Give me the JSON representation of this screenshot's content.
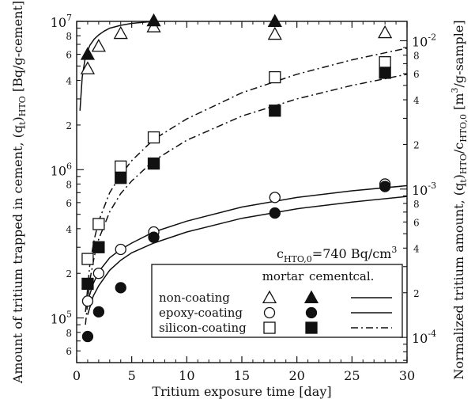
{
  "chart_data": {
    "type": "scatter",
    "xlabel": "Tritium exposure time [day]",
    "ylabel_left": "Amount of tritium trapped in cement, (q",
    "ylabel_left_sub": "t",
    "ylabel_left_mid": ")",
    "ylabel_left_sub2": "HTO",
    "ylabel_left_unit": " [Bq/g-cement]",
    "ylabel_right": "Normalized tritium amount, (q",
    "ylabel_right_sub": "t",
    "ylabel_right_mid": ")",
    "ylabel_right_sub2": "HTO",
    "ylabel_right_slash": "/c",
    "ylabel_right_sub3": "HTO,0",
    "ylabel_right_unit_pre": " [m",
    "ylabel_right_unit_sup": "3",
    "ylabel_right_unit_post": "/g-sample]",
    "x_scale": "linear",
    "y_scale": "log",
    "xlim": [
      0,
      30
    ],
    "ylim": [
      50000,
      10000000
    ],
    "y2lim": [
      6.76e-05,
      0.01351
    ],
    "x_ticks": [
      0,
      5,
      10,
      15,
      20,
      25,
      30
    ],
    "y_left_ticks": [
      {
        "value": 100000,
        "base": "10",
        "exp": "5"
      },
      {
        "value": 1000000,
        "base": "10",
        "exp": "6"
      },
      {
        "value": 10000000,
        "base": "10",
        "exp": "7"
      }
    ],
    "y_left_minor_labels": [
      {
        "value": 60000,
        "label": "6"
      },
      {
        "value": 80000,
        "label": "8"
      },
      {
        "value": 200000,
        "label": "2"
      },
      {
        "value": 400000,
        "label": "4"
      },
      {
        "value": 600000,
        "label": "6"
      },
      {
        "value": 800000,
        "label": "8"
      },
      {
        "value": 2000000,
        "label": "2"
      },
      {
        "value": 4000000,
        "label": "4"
      },
      {
        "value": 6000000,
        "label": "6"
      },
      {
        "value": 8000000,
        "label": "8"
      }
    ],
    "y_right_ticks": [
      {
        "value": 0.0001,
        "base": "10",
        "exp": "-4"
      },
      {
        "value": 0.001,
        "base": "10",
        "exp": "-3"
      },
      {
        "value": 0.01,
        "base": "10",
        "exp": "-2"
      }
    ],
    "y_right_minor_labels": [
      {
        "value": 0.0002,
        "label": "2"
      },
      {
        "value": 0.0004,
        "label": "4"
      },
      {
        "value": 0.0006,
        "label": "6"
      },
      {
        "value": 0.0008,
        "label": "8"
      },
      {
        "value": 0.002,
        "label": "2"
      },
      {
        "value": 0.004,
        "label": "4"
      },
      {
        "value": 0.006,
        "label": "6"
      },
      {
        "value": 0.008,
        "label": "8"
      }
    ],
    "series": [
      {
        "name": "non-coating",
        "kind": "mortar",
        "marker": "triangle-open",
        "x": [
          1,
          2,
          4,
          7,
          18,
          28
        ],
        "y": [
          4800000,
          6800000,
          8300000,
          9200000,
          8200000,
          8400000
        ]
      },
      {
        "name": "non-coating",
        "kind": "cement",
        "marker": "triangle-filled",
        "x": [
          1,
          7,
          18
        ],
        "y": [
          6000000,
          10100000,
          10000000
        ]
      },
      {
        "name": "epoxy-coating",
        "kind": "mortar",
        "marker": "circle-open",
        "x": [
          1,
          2,
          4,
          7,
          18,
          28
        ],
        "y": [
          130000,
          200000,
          290000,
          380000,
          650000,
          800000
        ]
      },
      {
        "name": "epoxy-coating",
        "kind": "cement",
        "marker": "circle-filled",
        "x": [
          1,
          2,
          4,
          7,
          18,
          28
        ],
        "y": [
          75000,
          110000,
          160000,
          350000,
          510000,
          770000
        ]
      },
      {
        "name": "silicon-coating",
        "kind": "mortar",
        "marker": "square-open",
        "x": [
          1,
          2,
          4,
          7,
          18,
          28
        ],
        "y": [
          250000,
          430000,
          1050000,
          1650000,
          4200000,
          5300000
        ]
      },
      {
        "name": "silicon-coating",
        "kind": "cement",
        "marker": "square-filled",
        "x": [
          1,
          2,
          4,
          7,
          18,
          28
        ],
        "y": [
          170000,
          300000,
          880000,
          1100000,
          2500000,
          4500000
        ]
      }
    ],
    "curves": [
      {
        "name": "non-coating",
        "style": "solid",
        "x": [
          0.3,
          0.5,
          0.8,
          1.2,
          1.6,
          2,
          2.5,
          3,
          4,
          5,
          7,
          10,
          15,
          20,
          25,
          28
        ],
        "y": [
          2500000,
          4200000,
          5800000,
          6900000,
          7600000,
          8100000,
          8600000,
          9000000,
          9400000,
          9700000,
          10000000,
          10100000,
          10100000,
          10100000,
          10100000,
          10100000
        ]
      },
      {
        "name": "epoxy-coating",
        "style": "solid",
        "x": [
          1,
          1.5,
          2,
          3,
          4,
          5,
          7,
          10,
          15,
          20,
          25,
          30
        ],
        "y": [
          130000,
          170000,
          205000,
          255000,
          290000,
          320000,
          380000,
          450000,
          560000,
          650000,
          720000,
          780000
        ]
      },
      {
        "name": "epoxy-coating",
        "style": "solid",
        "x": [
          1,
          1.5,
          2,
          3,
          4,
          5,
          7,
          10,
          15,
          20,
          25,
          30
        ],
        "y": [
          105000,
          140000,
          165000,
          210000,
          245000,
          275000,
          320000,
          380000,
          470000,
          545000,
          605000,
          660000
        ]
      },
      {
        "name": "silicon-coating",
        "style": "dash-dot",
        "x": [
          0.8,
          1.2,
          1.6,
          2,
          3,
          4,
          5,
          7,
          10,
          15,
          20,
          25,
          30
        ],
        "y": [
          110000,
          230000,
          340000,
          450000,
          700000,
          920000,
          1150000,
          1600000,
          2200000,
          3300000,
          4400000,
          5500000,
          6600000
        ]
      },
      {
        "name": "silicon-coating",
        "style": "dash-dot",
        "x": [
          0.8,
          1.2,
          1.6,
          2,
          3,
          4,
          5,
          7,
          10,
          15,
          20,
          25,
          30
        ],
        "y": [
          90000,
          180000,
          260000,
          340000,
          520000,
          690000,
          840000,
          1150000,
          1580000,
          2300000,
          3000000,
          3700000,
          4400000
        ]
      }
    ],
    "annotation": {
      "prefix": "c",
      "sub": "HTO,0",
      "text": "=740 Bq/cm",
      "sup": "3"
    },
    "legend": {
      "placement": "bottom-right",
      "headers": [
        "mortar",
        "cement",
        "cal."
      ],
      "rows": [
        {
          "label": "non-coating",
          "mortar": "triangle-open",
          "cement": "triangle-filled",
          "cal": "solid"
        },
        {
          "label": "epoxy-coating",
          "mortar": "circle-open",
          "cement": "circle-filled",
          "cal": "solid"
        },
        {
          "label": "silicon-coating",
          "mortar": "square-open",
          "cement": "square-filled",
          "cal": "dash-dot"
        }
      ]
    },
    "grid": false,
    "colors": {
      "ink": "#111111",
      "background": "#ffffff"
    }
  }
}
